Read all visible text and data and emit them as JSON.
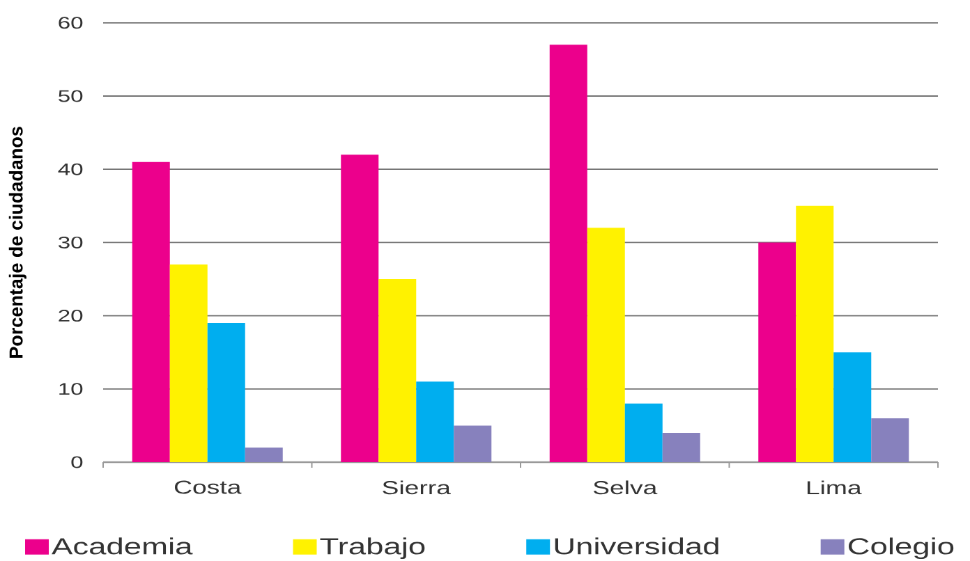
{
  "chart_data": {
    "type": "bar",
    "ylabel": "Porcentaje de ciudadanos",
    "categories": [
      "Costa",
      "Sierra",
      "Selva",
      "Lima"
    ],
    "series": [
      {
        "name": "Academia",
        "color": "#ec008c",
        "values": [
          41,
          42,
          57,
          30
        ]
      },
      {
        "name": "Trabajo",
        "color": "#fff200",
        "values": [
          27,
          25,
          32,
          35
        ]
      },
      {
        "name": "Universidad",
        "color": "#00aeef",
        "values": [
          19,
          11,
          8,
          15
        ]
      },
      {
        "name": "Colegio",
        "color": "#8781bd",
        "values": [
          2,
          5,
          4,
          6
        ]
      }
    ],
    "ylim": [
      0,
      60
    ],
    "yticks": [
      0,
      10,
      20,
      30,
      40,
      50,
      60
    ],
    "grid": "y",
    "legend": "bottom"
  }
}
